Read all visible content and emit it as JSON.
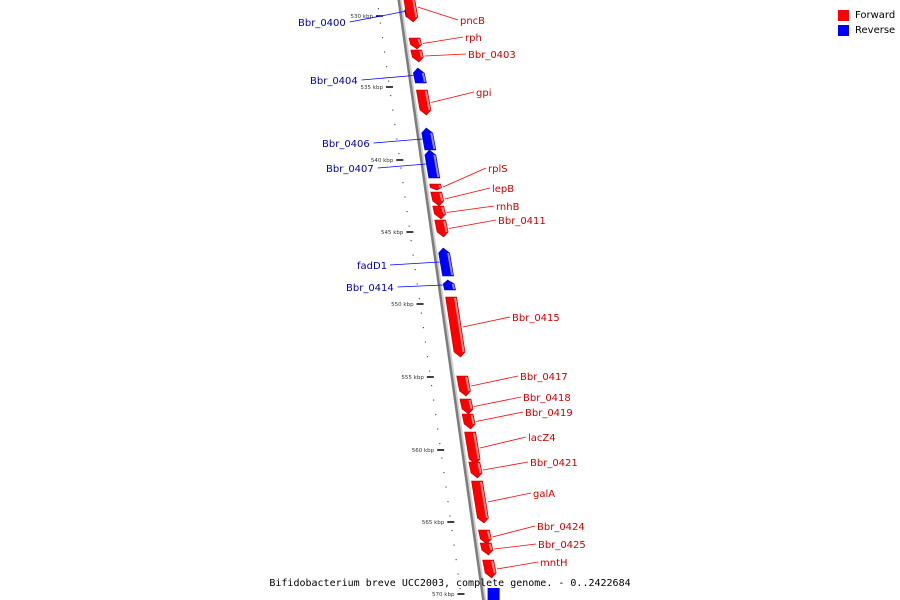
{
  "legend": {
    "forward": {
      "label": "Forward",
      "color": "#ff0000"
    },
    "reverse": {
      "label": "Reverse",
      "color": "#0000ff"
    }
  },
  "caption": "Bifidobacterium breve UCC2003, complete genome. - 0..2422684",
  "kbp_ticks": [
    "530 kbp",
    "535 kbp",
    "540 kbp",
    "545 kbp",
    "550 kbp",
    "555 kbp",
    "560 kbp",
    "565 kbp",
    "570 kbp"
  ],
  "genes": [
    {
      "name": "Bbr_0400",
      "strand": "reverse"
    },
    {
      "name": "pncB",
      "strand": "forward"
    },
    {
      "name": "rph",
      "strand": "forward"
    },
    {
      "name": "Bbr_0403",
      "strand": "forward"
    },
    {
      "name": "Bbr_0404",
      "strand": "reverse"
    },
    {
      "name": "gpi",
      "strand": "forward"
    },
    {
      "name": "Bbr_0406",
      "strand": "reverse"
    },
    {
      "name": "Bbr_0407",
      "strand": "reverse"
    },
    {
      "name": "rplS",
      "strand": "forward"
    },
    {
      "name": "lepB",
      "strand": "forward"
    },
    {
      "name": "rnhB",
      "strand": "forward"
    },
    {
      "name": "Bbr_0411",
      "strand": "forward"
    },
    {
      "name": "fadD1",
      "strand": "reverse"
    },
    {
      "name": "Bbr_0414",
      "strand": "reverse"
    },
    {
      "name": "Bbr_0415",
      "strand": "forward"
    },
    {
      "name": "Bbr_0417",
      "strand": "forward"
    },
    {
      "name": "Bbr_0418",
      "strand": "forward"
    },
    {
      "name": "Bbr_0419",
      "strand": "forward"
    },
    {
      "name": "lacZ4",
      "strand": "forward"
    },
    {
      "name": "Bbr_0421",
      "strand": "forward"
    },
    {
      "name": "galA",
      "strand": "forward"
    },
    {
      "name": "Bbr_0424",
      "strand": "forward"
    },
    {
      "name": "Bbr_0425",
      "strand": "forward"
    },
    {
      "name": "mntH",
      "strand": "forward"
    }
  ]
}
